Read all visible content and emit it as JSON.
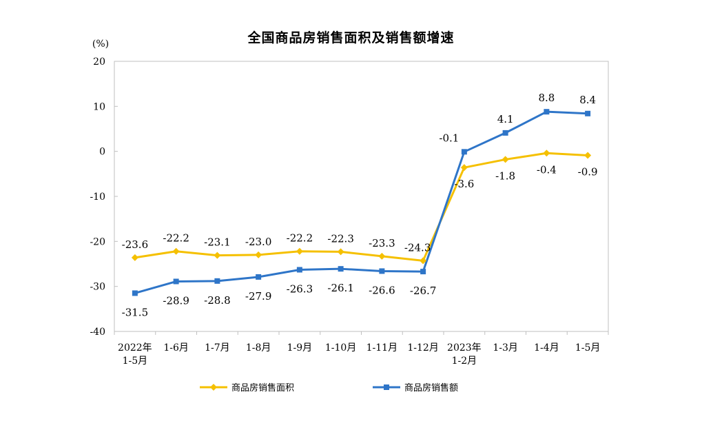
{
  "chart_data": {
    "type": "line",
    "title": "全国商品房销售面积及销售额增速",
    "y_unit_label": "(%)",
    "ylim": [
      -40,
      20
    ],
    "yticks": [
      20,
      10,
      0,
      -10,
      -20,
      -30,
      -40
    ],
    "categories": [
      [
        "2022年",
        "1-5月"
      ],
      [
        "1-6月"
      ],
      [
        "1-7月"
      ],
      [
        "1-8月"
      ],
      [
        "1-9月"
      ],
      [
        "1-10月"
      ],
      [
        "1-11月"
      ],
      [
        "1-12月"
      ],
      [
        "2023年",
        "1-2月"
      ],
      [
        "1-3月"
      ],
      [
        "1-4月"
      ],
      [
        "1-5月"
      ]
    ],
    "series": [
      {
        "name": "商品房销售面积",
        "color": "#f5c000",
        "marker": "diamond",
        "values": [
          -23.6,
          -22.2,
          -23.1,
          -23.0,
          -22.2,
          -22.3,
          -23.3,
          -24.3,
          -3.6,
          -1.8,
          -0.4,
          -0.9
        ],
        "labels": [
          "-23.6",
          "-22.2",
          "-23.1",
          "-23.0",
          "-22.2",
          "-22.3",
          "-23.3",
          "-24.3",
          "-3.6",
          "-1.8",
          "-0.4",
          "-0.9"
        ]
      },
      {
        "name": "商品房销售额",
        "color": "#2e75c8",
        "marker": "square",
        "values": [
          -31.5,
          -28.9,
          -28.8,
          -27.9,
          -26.3,
          -26.1,
          -26.6,
          -26.7,
          -0.1,
          4.1,
          8.8,
          8.4
        ],
        "labels": [
          "-31.5",
          "-28.9",
          "-28.8",
          "-27.9",
          "-26.3",
          "-26.1",
          "-26.6",
          "-26.7",
          "-0.1",
          "4.1",
          "8.8",
          "8.4"
        ]
      }
    ],
    "legend_position": "bottom",
    "grid": false
  }
}
